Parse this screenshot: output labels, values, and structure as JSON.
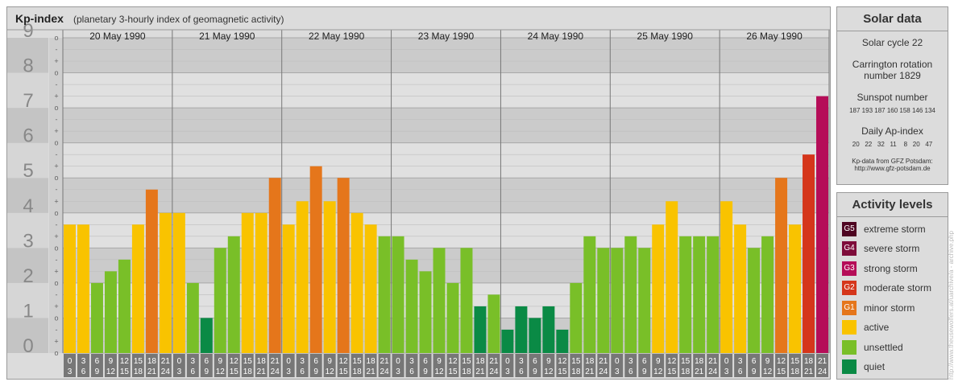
{
  "chart_data": {
    "type": "bar",
    "title": "Kp-index",
    "subtitle": "(planetary 3-hourly index of geomagnetic activity)",
    "ylim": [
      0,
      9
    ],
    "y_ticks": [
      "0",
      "1",
      "2",
      "3",
      "4",
      "5",
      "6",
      "7",
      "8",
      "9"
    ],
    "minor_tick_labels": [
      "o",
      "+",
      "-"
    ],
    "days": [
      "20 May 1990",
      "21 May 1990",
      "22 May 1990",
      "23 May 1990",
      "24 May 1990",
      "25 May 1990",
      "26 May 1990"
    ],
    "interval_start": [
      "0",
      "3",
      "6",
      "9",
      "12",
      "15",
      "18",
      "21"
    ],
    "interval_end": [
      "3",
      "6",
      "9",
      "12",
      "15",
      "18",
      "21",
      "24"
    ],
    "values": [
      [
        3.667,
        3.667,
        2.0,
        2.333,
        2.667,
        3.667,
        4.667,
        4.0
      ],
      [
        4.0,
        2.0,
        1.0,
        3.0,
        3.333,
        4.0,
        4.0,
        5.0
      ],
      [
        3.667,
        4.333,
        5.333,
        4.333,
        5.0,
        4.0,
        3.667,
        3.333
      ],
      [
        3.333,
        2.667,
        2.333,
        3.0,
        2.0,
        3.0,
        1.333,
        1.667
      ],
      [
        0.667,
        1.333,
        1.0,
        1.333,
        0.667,
        2.0,
        3.333,
        3.0
      ],
      [
        3.0,
        3.333,
        3.0,
        3.667,
        4.333,
        3.333,
        3.333,
        3.333
      ],
      [
        4.333,
        3.667,
        3.0,
        3.333,
        5.0,
        3.667,
        5.667,
        7.333
      ]
    ],
    "colors": {
      "quiet": "#0a8a45",
      "unsettled": "#79bf28",
      "active": "#f9c300",
      "minor": "#e5761b",
      "moderate": "#d5361b",
      "strong": "#b50d58",
      "severe": "#7e0c3a",
      "extreme": "#4e0521"
    }
  },
  "solar": {
    "title": "Solar data",
    "cycle": "Solar cycle 22",
    "carrington_line1": "Carrington rotation",
    "carrington_line2": "number 1829",
    "sunspot_label": "Sunspot number",
    "sunspot_values": "187 193 187 160 158 146 134",
    "ap_label": "Daily Ap-index",
    "ap_values": "20   22   32   11    8   20   47",
    "source_line1": "Kp-data from GFZ Potsdam:",
    "source_line2": "http://www.gfz-potsdam.de"
  },
  "activity": {
    "title": "Activity levels",
    "items": [
      {
        "code": "G5",
        "label": "extreme storm",
        "color": "#4e0521"
      },
      {
        "code": "G4",
        "label": "severe storm",
        "color": "#7e0c3a"
      },
      {
        "code": "G3",
        "label": "strong storm",
        "color": "#b50d58"
      },
      {
        "code": "G2",
        "label": "moderate storm",
        "color": "#d5361b"
      },
      {
        "code": "G1",
        "label": "minor storm",
        "color": "#e5761b"
      },
      {
        "code": "",
        "label": "active",
        "color": "#f9c300"
      },
      {
        "code": "",
        "label": "unsettled",
        "color": "#79bf28"
      },
      {
        "code": "",
        "label": "quiet",
        "color": "#0a8a45"
      }
    ]
  },
  "credit": "http://www.theusewolfers.at/uarchive/a - archive.php"
}
